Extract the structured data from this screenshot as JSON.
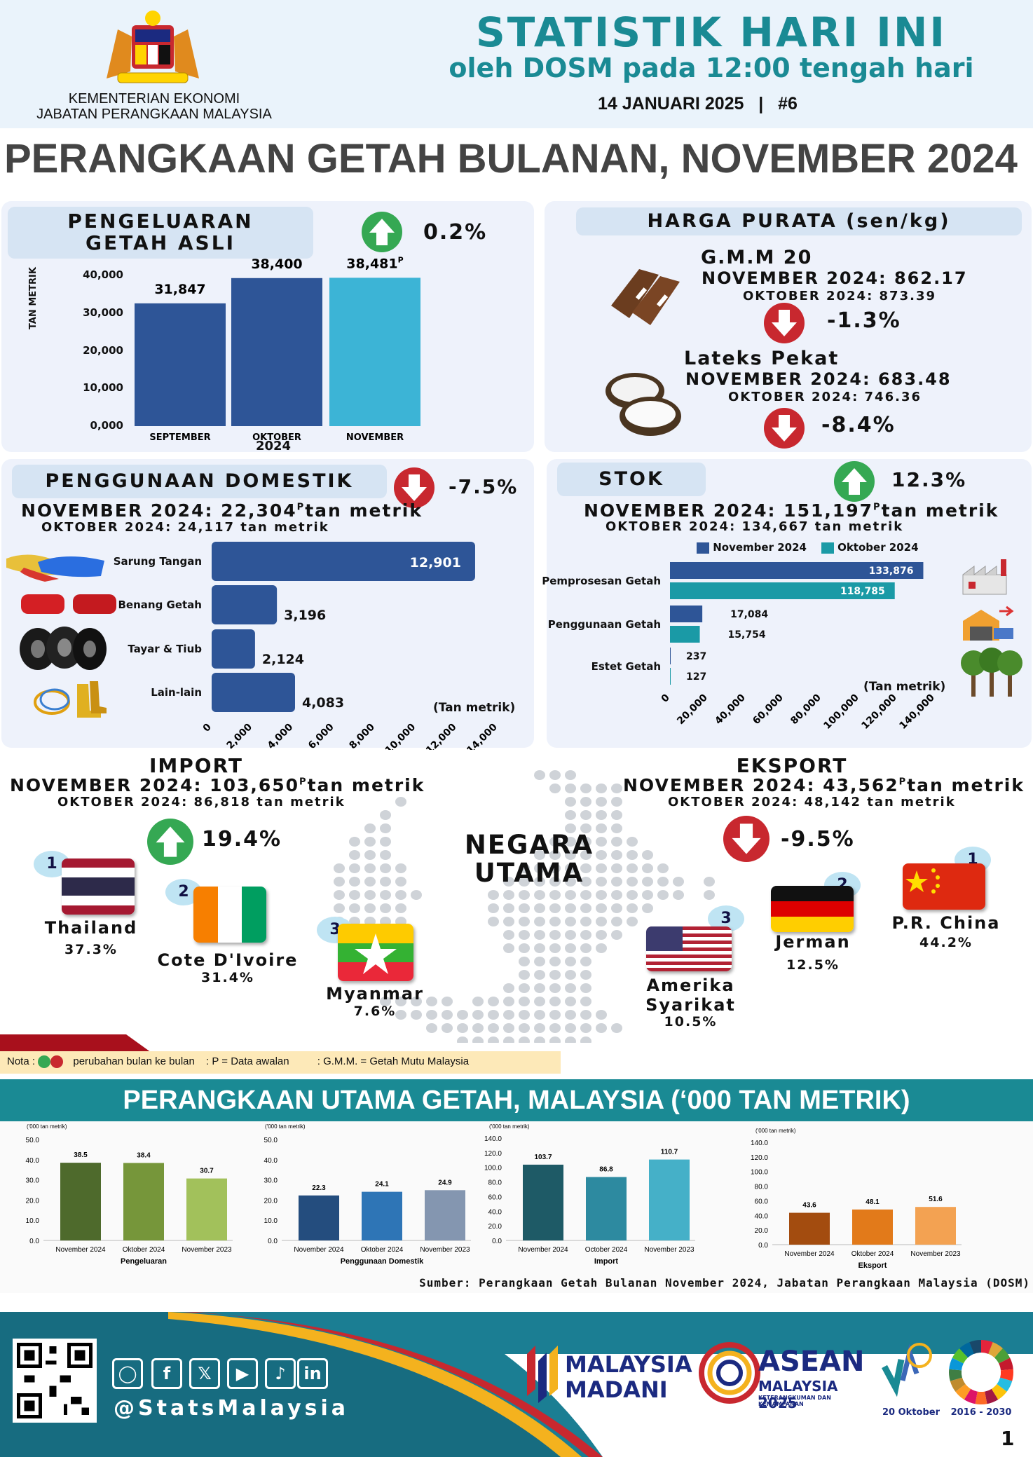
{
  "header": {
    "ministry_line1": "KEMENTERIAN EKONOMI",
    "ministry_line2": "JABATAN PERANGKAAN MALAYSIA",
    "title": "STATISTIK HARI INI",
    "subtitle": "oleh DOSM pada 12:00 tengah hari",
    "date": "14 JANUARI 2025",
    "separator": "|",
    "issue": "#6"
  },
  "main_title": "PERANGKAAN GETAH BULANAN, NOVEMBER 2024",
  "production": {
    "title_line1": "PENGELUARAN",
    "title_line2": "GETAH ASLI",
    "change": "0.2%",
    "change_dir": "up",
    "y_axis_label": "TAN METRIK",
    "y_ticks": [
      "40,000",
      "30,000",
      "20,000",
      "10,000",
      "0,000"
    ],
    "year": "2024",
    "chart_data": {
      "type": "bar",
      "categories": [
        "SEPTEMBER",
        "OKTOBER",
        "NOVEMBER"
      ],
      "values": [
        31847,
        38400,
        38481
      ],
      "value_labels": [
        "31,847",
        "38,400",
        "38,481"
      ],
      "preliminary_mark": "P",
      "ylim": [
        0,
        40000
      ],
      "colors": [
        "#2e5597",
        "#2e5597",
        "#3cb4d6"
      ]
    }
  },
  "price": {
    "title": "HARGA PURATA (sen/kg)",
    "gmm": {
      "name": "G.M.M 20",
      "nov": "NOVEMBER 2024: 862.17",
      "okt": "OKTOBER 2024: 873.39",
      "change": "-1.3%",
      "change_dir": "down"
    },
    "latex": {
      "name": "Lateks Pekat",
      "nov": "NOVEMBER 2024: 683.48",
      "okt": "OKTOBER 2024: 746.36",
      "change": "-8.4%",
      "change_dir": "down"
    }
  },
  "domestic": {
    "title": "PENGGUNAAN DOMESTIK",
    "change": "-7.5%",
    "change_dir": "down",
    "nov_prefix": "NOVEMBER 2024: 22,304",
    "nov_mark": "P",
    "nov_unit": "tan metrik",
    "okt": "OKTOBER 2024: 24,117 tan metrik",
    "unit_label": "(Tan metrik)",
    "x_ticks": [
      "0",
      "2,000",
      "4,000",
      "6,000",
      "8,000",
      "10,000",
      "12,000",
      "14,000"
    ],
    "chart_data": {
      "type": "bar",
      "orientation": "horizontal",
      "categories": [
        "Sarung Tangan",
        "Benang Getah",
        "Tayar & Tiub",
        "Lain-lain"
      ],
      "values": [
        12901,
        3196,
        2124,
        4083
      ],
      "value_labels": [
        "12,901",
        "3,196",
        "2,124",
        "4,083"
      ],
      "xlim": [
        0,
        14000
      ],
      "color": "#2e5597"
    }
  },
  "stock": {
    "title": "STOK",
    "change": "12.3%",
    "change_dir": "up",
    "nov_prefix": "NOVEMBER 2024: 151,197",
    "nov_mark": "P",
    "nov_unit": "tan metrik",
    "okt": "OKTOBER 2024: 134,667 tan metrik",
    "unit_label": "(Tan metrik)",
    "x_ticks": [
      "0",
      "20,000",
      "40,000",
      "60,000",
      "80,000",
      "100,000",
      "120,000",
      "140,000"
    ],
    "chart_data": {
      "type": "bar",
      "orientation": "horizontal",
      "categories": [
        "Pemprosesan Getah",
        "Penggunaan Getah",
        "Estet Getah"
      ],
      "xlim": [
        0,
        140000
      ],
      "series": [
        {
          "name": "November 2024",
          "values": [
            133876,
            17084,
            237
          ],
          "labels": [
            "133,876",
            "17,084",
            "237"
          ],
          "color": "#2e5597"
        },
        {
          "name": "Oktober 2024",
          "values": [
            118785,
            15754,
            127
          ],
          "labels": [
            "118,785",
            "15,754",
            "127"
          ],
          "color": "#1a9aa6"
        }
      ]
    }
  },
  "import": {
    "title": "IMPORT",
    "nov_prefix": "NOVEMBER 2024: 103,650",
    "nov_mark": "P",
    "nov_unit": "tan metrik",
    "okt": "OKTOBER 2024: 86,818 tan metrik",
    "change": "19.4%",
    "change_dir": "up",
    "countries": [
      {
        "rank": "1",
        "name": "Thailand",
        "share": "37.3%"
      },
      {
        "rank": "2",
        "name": "Cote D'Ivoire",
        "share": "31.4%"
      },
      {
        "rank": "3",
        "name": "Myanmar",
        "share": "7.6%"
      }
    ]
  },
  "export": {
    "title": "EKSPORT",
    "nov_prefix": "NOVEMBER 2024: 43,562",
    "nov_mark": "P",
    "nov_unit": "tan metrik",
    "okt": "OKTOBER 2024: 48,142 tan metrik",
    "change": "-9.5%",
    "change_dir": "down",
    "countries": [
      {
        "rank": "1",
        "name": "P.R. China",
        "share": "44.2%"
      },
      {
        "rank": "2",
        "name": "Jerman",
        "share": "12.5%"
      },
      {
        "rank": "3",
        "name": "Amerika Syarikat",
        "share": "10.5%"
      }
    ]
  },
  "map_label_line1": "NEGARA",
  "map_label_line2": "UTAMA",
  "note": {
    "label": "Nota :",
    "change_text": "perubahan bulan ke bulan",
    "p_text": ": P = Data awalan",
    "gmm_text": ": G.M.M. = Getah Mutu Malaysia"
  },
  "banner": "PERANGKAAN UTAMA GETAH, MALAYSIA (‘000 TAN METRIK)",
  "mini_charts": [
    {
      "unit": "('000 tan metrik)",
      "xlabel": "Pengeluaran",
      "ylim": [
        0,
        50
      ],
      "y_ticks": [
        "50.0",
        "40.0",
        "30.0",
        "20.0",
        "10.0",
        "0.0"
      ],
      "categories": [
        "November 2024",
        "Oktober 2024",
        "November 2023"
      ],
      "values": [
        38.5,
        38.4,
        30.7
      ],
      "labels": [
        "38.5",
        "38.4",
        "30.7"
      ],
      "colors": [
        "#4e6a2c",
        "#76963a",
        "#a2c15b"
      ]
    },
    {
      "unit": "('000 tan metrik)",
      "xlabel": "Penggunaan Domestik",
      "ylim": [
        0,
        50
      ],
      "y_ticks": [
        "50.0",
        "40.0",
        "30.0",
        "20.0",
        "10.0",
        "0.0"
      ],
      "categories": [
        "November 2024",
        "Oktober 2024",
        "November 2023"
      ],
      "values": [
        22.3,
        24.1,
        24.9
      ],
      "labels": [
        "22.3",
        "24.1",
        "24.9"
      ],
      "colors": [
        "#244d7e",
        "#2e75b6",
        "#8496b0"
      ]
    },
    {
      "unit": "('000 tan metrik)",
      "xlabel": "Import",
      "ylim": [
        0,
        140
      ],
      "y_ticks": [
        "140.0",
        "120.0",
        "100.0",
        "80.0",
        "60.0",
        "40.0",
        "20.0",
        "0.0"
      ],
      "categories": [
        "November 2024",
        "October 2024",
        "November 2023"
      ],
      "values": [
        103.7,
        86.8,
        110.7
      ],
      "labels": [
        "103.7",
        "86.8",
        "110.7"
      ],
      "colors": [
        "#1e5a66",
        "#2d8aa0",
        "#45b0c8"
      ]
    },
    {
      "unit": "('000 tan metrik)",
      "xlabel": "Eksport",
      "ylim": [
        0,
        140
      ],
      "y_ticks": [
        "140.0",
        "120.0",
        "100.0",
        "80.0",
        "60.0",
        "40.0",
        "20.0",
        "0.0"
      ],
      "categories": [
        "November 2024",
        "Oktober 2024",
        "November 2023"
      ],
      "values": [
        43.6,
        48.1,
        51.6
      ],
      "labels": [
        "43.6",
        "48.1",
        "51.6"
      ],
      "colors": [
        "#a34c0f",
        "#e27a1a",
        "#f3a252"
      ]
    }
  ],
  "source": "Sumber: Perangkaan Getah Bulanan November 2024, Jabatan Perangkaan Malaysia (DOSM)",
  "footer": {
    "handle": "@StatsMalaysia",
    "madani_1": "MALAYSIA",
    "madani_2": "MADANI",
    "asean_1": "ASEAN",
    "asean_2": "MALAYSIA 2025",
    "asean_3": "KETERANGKUMAN DAN KEMAMPANAN",
    "date_logo": "20 Oktober",
    "sdg_years": "2016 - 2030",
    "page": "1"
  }
}
